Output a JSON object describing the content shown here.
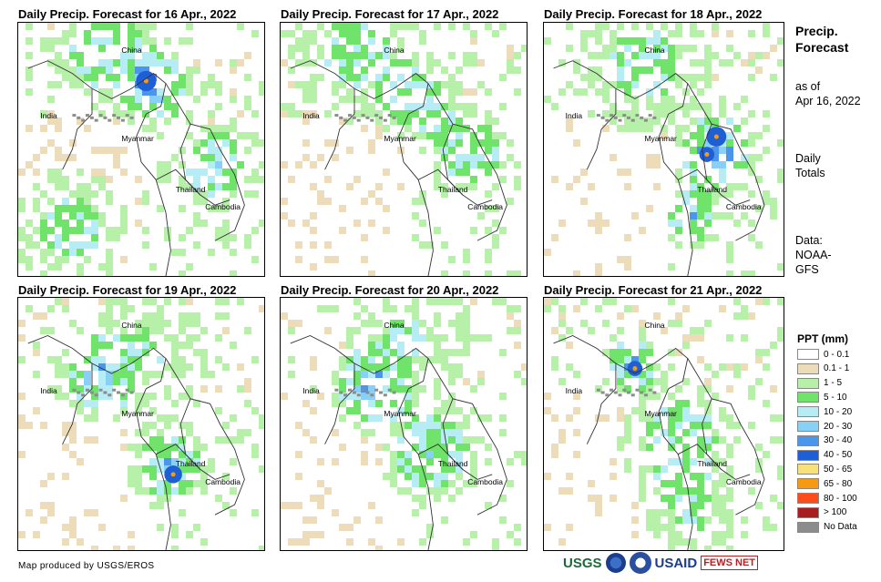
{
  "panels": [
    {
      "title": "Daily Precip. Forecast for 16 Apr., 2022",
      "labels": {
        "china": "China",
        "india": "India",
        "myanmar": "Myanmar",
        "thailand": "Thailand",
        "cambodia": "Cambodia"
      }
    },
    {
      "title": "Daily Precip. Forecast for 17 Apr., 2022",
      "labels": {
        "china": "China",
        "india": "India",
        "myanmar": "Myanmar",
        "thailand": "Thailand",
        "cambodia": "Cambodia"
      }
    },
    {
      "title": "Daily Precip. Forecast for 18 Apr., 2022",
      "labels": {
        "china": "China",
        "india": "India",
        "myanmar": "Myanmar",
        "thailand": "Thailand",
        "cambodia": "Cambodia"
      }
    },
    {
      "title": "Daily Precip. Forecast for 19 Apr., 2022",
      "labels": {
        "china": "China",
        "india": "India",
        "myanmar": "Myanmar",
        "thailand": "Thailand",
        "cambodia": "Cambodia"
      }
    },
    {
      "title": "Daily Precip. Forecast for 20 Apr., 2022",
      "labels": {
        "china": "China",
        "india": "India",
        "myanmar": "Myanmar",
        "thailand": "Thailand",
        "cambodia": "Cambodia"
      }
    },
    {
      "title": "Daily Precip. Forecast for 21 Apr., 2022",
      "labels": {
        "china": "China",
        "india": "India",
        "myanmar": "Myanmar",
        "thailand": "Thailand",
        "cambodia": "Cambodia"
      }
    }
  ],
  "sidebar": {
    "title_line1": "Precip.",
    "title_line2": "Forecast",
    "asof_line1": "as of",
    "asof_line2": "Apr 16, 2022",
    "totals_line1": "Daily",
    "totals_line2": "Totals",
    "data_line1": "Data:",
    "data_line2": "NOAA-",
    "data_line3": "GFS"
  },
  "legend": {
    "title": "PPT (mm)",
    "items": [
      {
        "label": "0 - 0.1",
        "color": "#ffffff"
      },
      {
        "label": "0.1 - 1",
        "color": "#ecdcb9"
      },
      {
        "label": "1 - 5",
        "color": "#b7f0a8"
      },
      {
        "label": "5 - 10",
        "color": "#6fe36a"
      },
      {
        "label": "10 - 20",
        "color": "#b6ecf3"
      },
      {
        "label": "20 - 30",
        "color": "#88d0f5"
      },
      {
        "label": "30 - 40",
        "color": "#4b95ea"
      },
      {
        "label": "40 - 50",
        "color": "#1f5fd6"
      },
      {
        "label": "50 - 65",
        "color": "#f8e07a"
      },
      {
        "label": "65 - 80",
        "color": "#f59a12"
      },
      {
        "label": "80 - 100",
        "color": "#ff4d1a"
      },
      {
        "label": "> 100",
        "color": "#a81d1d"
      },
      {
        "label": "No Data",
        "color": "#8c8c8c"
      }
    ]
  },
  "footer": {
    "credit": "Map produced by USGS/EROS",
    "logo_usgs": "USGS",
    "logo_usaid": "USAID",
    "logo_fews": "FEWS NET"
  }
}
